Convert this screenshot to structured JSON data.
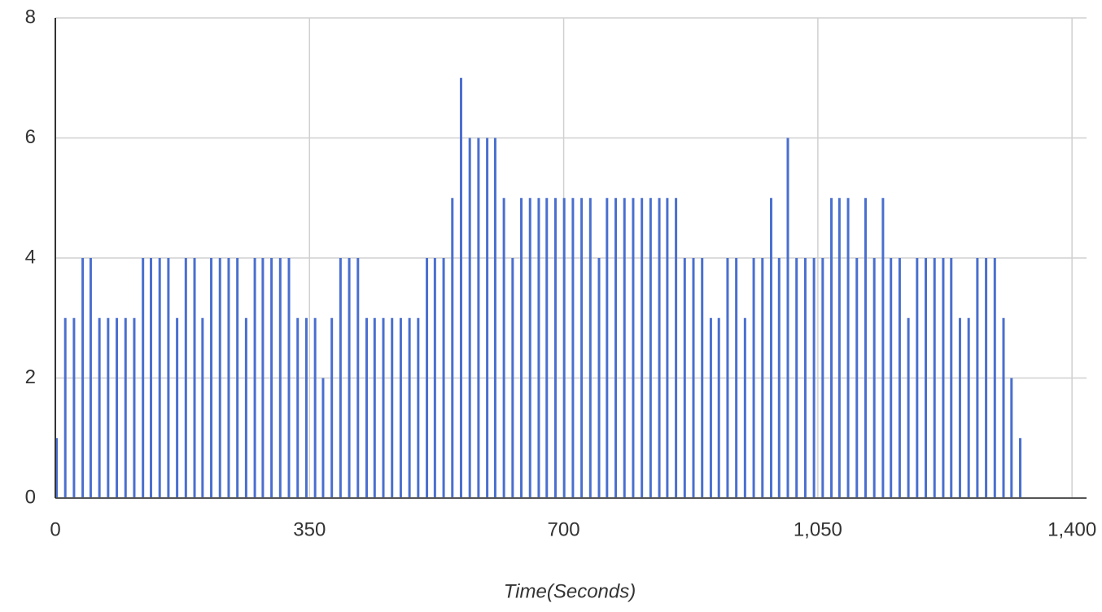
{
  "chart_data": {
    "type": "bar",
    "x_label": "Time(Seconds)",
    "x": [
      0,
      12,
      24,
      36,
      47,
      59,
      71,
      83,
      95,
      107,
      119,
      130,
      142,
      154,
      166,
      178,
      190,
      201,
      213,
      225,
      237,
      249,
      261,
      273,
      284,
      296,
      308,
      320,
      332,
      344,
      356,
      367,
      379,
      391,
      403,
      415,
      427,
      438,
      450,
      462,
      474,
      486,
      498,
      510,
      521,
      533,
      545,
      557,
      569,
      581,
      593,
      604,
      616,
      628,
      640,
      652,
      664,
      675,
      687,
      699,
      711,
      723,
      735,
      747,
      758,
      770,
      782,
      794,
      806,
      818,
      830,
      841,
      853,
      865,
      877,
      889,
      901,
      912,
      924,
      936,
      948,
      960,
      972,
      984,
      995,
      1007,
      1019,
      1031,
      1043,
      1055,
      1067,
      1078,
      1090,
      1102,
      1114,
      1126,
      1138,
      1149,
      1161,
      1173,
      1185,
      1197,
      1209,
      1221,
      1232,
      1244,
      1256,
      1268,
      1280,
      1292,
      1304,
      1315,
      1327
    ],
    "values": [
      1,
      3,
      3,
      4,
      4,
      3,
      3,
      3,
      3,
      3,
      4,
      4,
      4,
      4,
      3,
      4,
      4,
      3,
      4,
      4,
      4,
      4,
      3,
      4,
      4,
      4,
      4,
      4,
      3,
      3,
      3,
      2,
      3,
      4,
      4,
      4,
      3,
      3,
      3,
      3,
      3,
      3,
      3,
      4,
      4,
      4,
      5,
      7,
      6,
      6,
      6,
      6,
      5,
      4,
      5,
      5,
      5,
      5,
      5,
      5,
      5,
      5,
      5,
      4,
      5,
      5,
      5,
      5,
      5,
      5,
      5,
      5,
      5,
      4,
      4,
      4,
      3,
      3,
      4,
      4,
      3,
      4,
      4,
      5,
      4,
      6,
      4,
      4,
      4,
      4,
      5,
      5,
      5,
      4,
      5,
      4,
      5,
      4,
      4,
      3,
      4,
      4,
      4,
      4,
      4,
      3,
      3,
      4,
      4,
      4,
      3,
      2,
      1
    ],
    "color": "#4a6fcf",
    "xlim": [
      0,
      1420
    ],
    "xticks": [
      0,
      350,
      700,
      {
        "value": 1050,
        "label": "1,050"
      },
      {
        "value": 1400,
        "label": "1,400"
      }
    ],
    "ylim": [
      0,
      8
    ],
    "yticks": [
      0,
      2,
      4,
      6,
      8
    ],
    "grid": true
  }
}
